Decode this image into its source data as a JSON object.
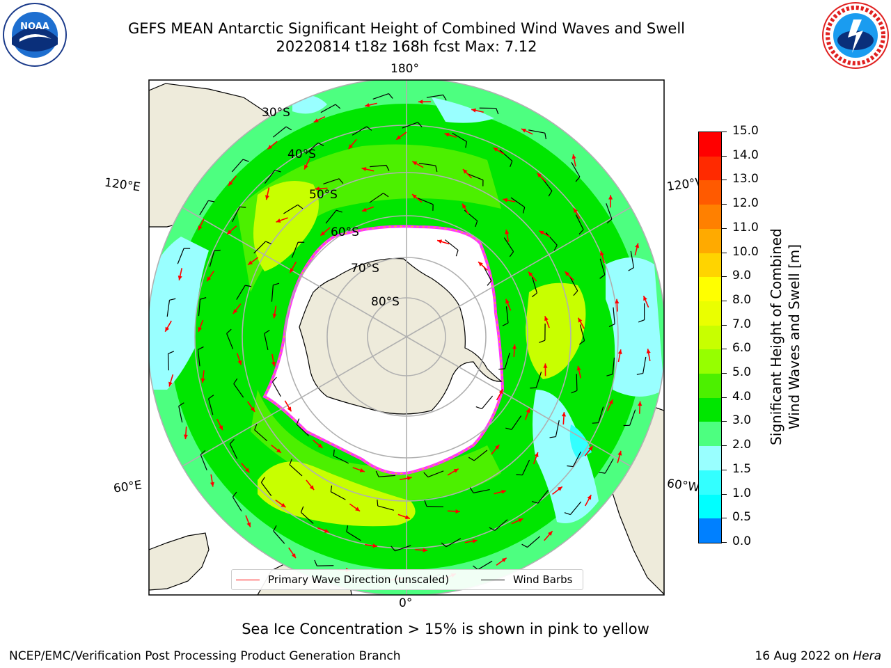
{
  "title": {
    "line1": "GEFS MEAN Antarctic Significant Height of Combined Wind Waves and Swell",
    "line2": "20220814 t18z 168h fcst   Max: 7.12"
  },
  "logos": {
    "left": "noaa-logo",
    "right": "national-weather-service-logo"
  },
  "map": {
    "projection": "south-polar-stereographic",
    "latitude_labels": [
      "30°S",
      "40°S",
      "50°S",
      "60°S",
      "70°S",
      "80°S"
    ],
    "longitude_labels": {
      "top": "180°",
      "bottom": "0°",
      "upper_left": "120°E",
      "upper_right": "120°W",
      "lower_left": "60°E",
      "lower_right": "60°W"
    },
    "colors": {
      "land": "#eeebdb",
      "ice_free_antarctica": "#ffffff",
      "sea_ice_edge": "#ff33ff",
      "wave_arrows": "#ff0000",
      "wind_barbs": "#000000",
      "graticule": "#b0b0b0"
    }
  },
  "legend": {
    "items": [
      {
        "label": "Primary Wave Direction (unscaled)",
        "color": "#ff0000"
      },
      {
        "label": "Wind Barbs",
        "color": "#000000"
      }
    ]
  },
  "colorbar": {
    "label_line1": "Significant Height of Combined",
    "label_line2": "Wind Waves and Swell [m]",
    "ticks": [
      "15.0",
      "14.0",
      "13.0",
      "12.0",
      "11.0",
      "10.0",
      "9.0",
      "8.0",
      "7.0",
      "6.0",
      "5.0",
      "4.0",
      "3.0",
      "2.0",
      "1.5",
      "1.0",
      "0.5",
      "0.0"
    ],
    "colors_top_to_bottom": [
      "#ff0000",
      "#ff2a00",
      "#ff5a00",
      "#ff8000",
      "#ffaa00",
      "#ffd400",
      "#ffff00",
      "#eaff00",
      "#c8ff00",
      "#96ff00",
      "#4cf000",
      "#00e600",
      "#4dff80",
      "#99ffff",
      "#33ffff",
      "#00ffff",
      "#0080ff",
      "#0000ff"
    ]
  },
  "note": "Sea Ice Concentration > 15% is shown in pink to yellow",
  "footer": {
    "left": "NCEP/EMC/Verification Post Processing Product Generation Branch",
    "right_prefix": "16 Aug 2022 on ",
    "right_host": "Hera"
  }
}
